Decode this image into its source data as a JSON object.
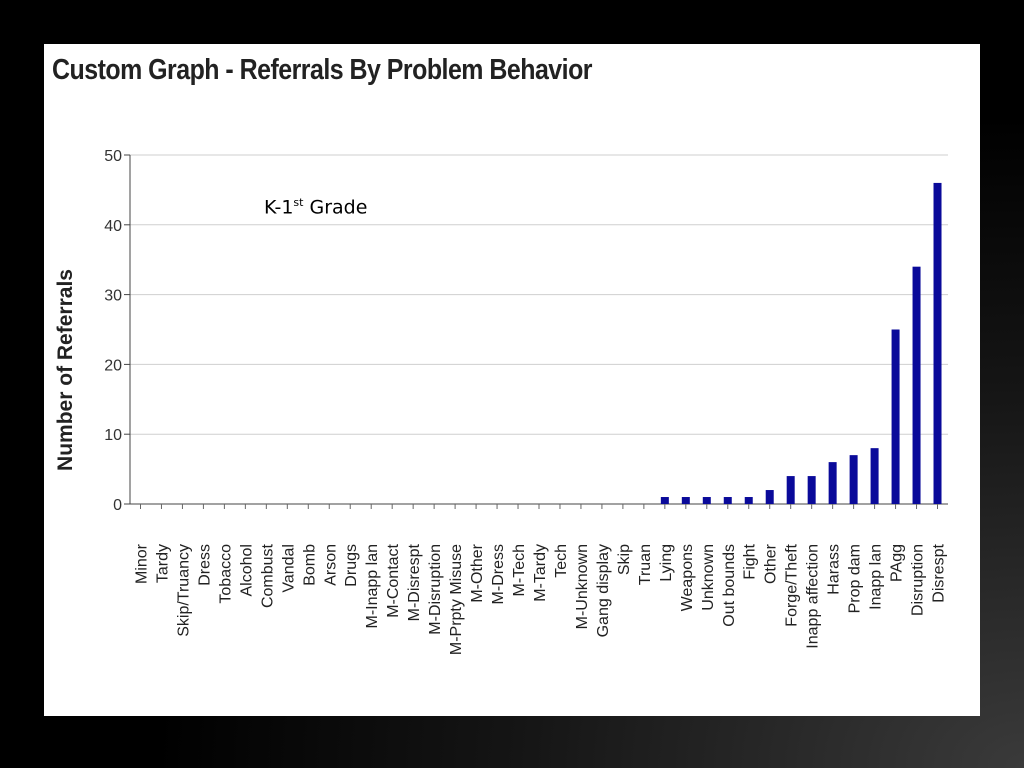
{
  "chart_data": {
    "type": "bar",
    "title": "Custom Graph - Referrals By Problem Behavior",
    "annotation": {
      "prefix": "K-1",
      "sup": "st",
      "suffix": " Grade"
    },
    "ylabel": "Number of Referrals",
    "xlabel": "",
    "ylim": [
      0,
      50
    ],
    "yticks": [
      0,
      10,
      20,
      30,
      40,
      50
    ],
    "grid": true,
    "bar_color": "#0a0a9a",
    "categories": [
      "Minor",
      "Tardy",
      "Skip/Truancy",
      "Dress",
      "Tobacco",
      "Alcohol",
      "Combust",
      "Vandal",
      "Bomb",
      "Arson",
      "Drugs",
      "M-Inapp lan",
      "M-Contact",
      "M-Disrespt",
      "M-Disruption",
      "M-Prpty Misuse",
      "M-Other",
      "M-Dress",
      "M-Tech",
      "M-Tardy",
      "Tech",
      "M-Unknown",
      "Gang display",
      "Skip",
      "Truan",
      "Lying",
      "Weapons",
      "Unknown",
      "Out bounds",
      "Fight",
      "Other",
      "Forge/Theft",
      "Inapp affection",
      "Harass",
      "Prop dam",
      "Inapp lan",
      "PAgg",
      "Disruption",
      "Disrespt"
    ],
    "values": [
      0,
      0,
      0,
      0,
      0,
      0,
      0,
      0,
      0,
      0,
      0,
      0,
      0,
      0,
      0,
      0,
      0,
      0,
      0,
      0,
      0,
      0,
      0,
      0,
      0,
      1,
      1,
      1,
      1,
      1,
      2,
      4,
      4,
      6,
      7,
      8,
      25,
      34,
      46
    ]
  }
}
